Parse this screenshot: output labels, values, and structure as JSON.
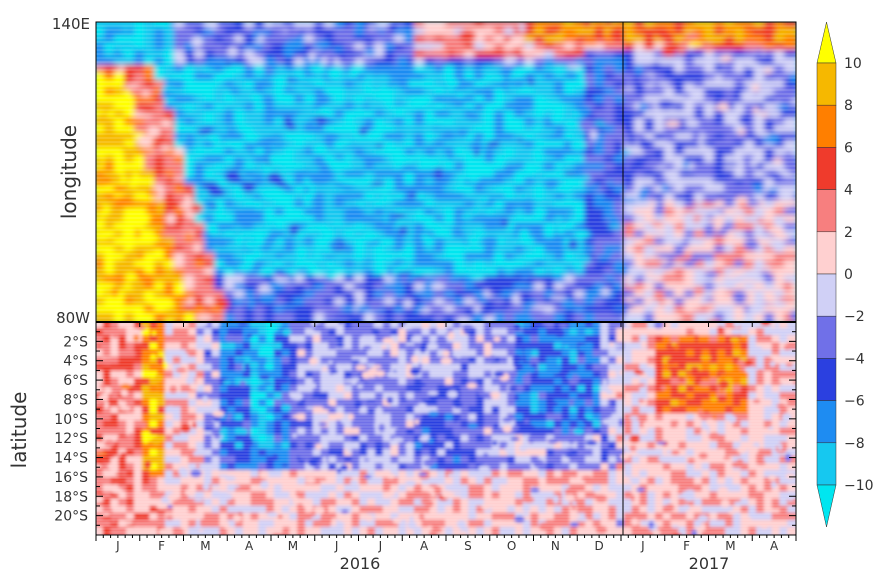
{
  "chart_data": [
    {
      "type": "heatmap",
      "panel": "top",
      "ylabel": "longitude",
      "y_tick_labels": [
        "140E",
        "80W"
      ],
      "x_tick_labels": [],
      "value_range": [
        -10,
        10
      ],
      "regions": [
        {
          "desc": "warm east-Pacific wedge",
          "x_month": [
            0.0,
            1.2
          ],
          "value": 9
        },
        {
          "desc": "cold tongue",
          "x_month": [
            1.5,
            11.5
          ],
          "value": -8
        },
        {
          "desc": "warm west-Pacific top band",
          "x_month": [
            6.5,
            16.0
          ],
          "value": 4
        },
        {
          "desc": "2017 warming",
          "x_month": [
            12.0,
            16.0
          ],
          "value": 1
        }
      ]
    },
    {
      "type": "heatmap",
      "panel": "bottom",
      "ylabel": "latitude",
      "y_tick_labels": [
        "2°S",
        "4°S",
        "6°S",
        "8°S",
        "10°S",
        "12°S",
        "14°S",
        "16°S",
        "18°S",
        "20°S"
      ],
      "x_tick_labels": [
        "J",
        "F",
        "M",
        "A",
        "M",
        "J",
        "J",
        "A",
        "S",
        "O",
        "N",
        "D",
        "J",
        "F",
        "M",
        "A"
      ],
      "x_year_labels": [
        "2016",
        "2017"
      ],
      "value_range": [
        -10,
        10
      ]
    }
  ],
  "colorbar": {
    "tick_labels": [
      "10",
      "8",
      "6",
      "4",
      "2",
      "0",
      "−2",
      "−4",
      "−6",
      "−8",
      "−10"
    ],
    "colors": [
      "#ffff00",
      "#f6b800",
      "#ff7f00",
      "#ef3b2c",
      "#f77f7f",
      "#ffd0d0",
      "#d0d0f6",
      "#7070e8",
      "#2b40e0",
      "#1e8cf2",
      "#16c8f0",
      "#00e6f0"
    ]
  }
}
